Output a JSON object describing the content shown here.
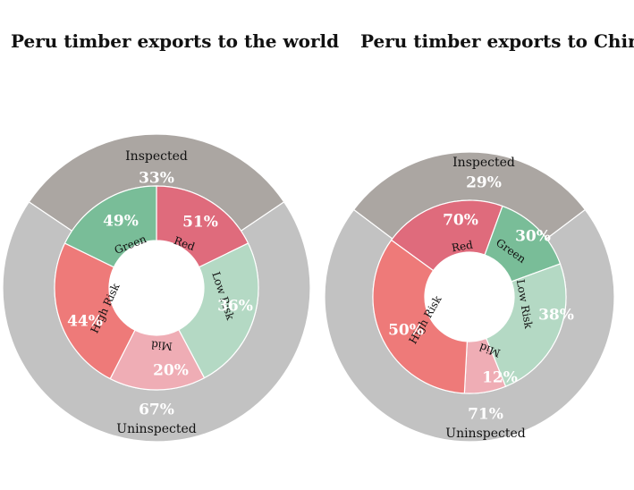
{
  "chart_data": [
    {
      "type": "donut",
      "title": "Peru timber exports to the world",
      "outer": [
        {
          "label": "Inspected",
          "value": 33,
          "display": "33%"
        },
        {
          "label": "Uninspected",
          "value": 67,
          "display": "67%"
        }
      ],
      "inner": [
        {
          "label": "Red",
          "value": 51,
          "display": "51%"
        },
        {
          "label": "Green",
          "value": 49,
          "display": "49%"
        },
        {
          "label": "Low Risk",
          "value": 36,
          "display": "36%"
        },
        {
          "label": "Mid",
          "value": 20,
          "display": "20%"
        },
        {
          "label": "High Risk",
          "value": 44,
          "display": "44%"
        }
      ]
    },
    {
      "type": "donut",
      "title": "Peru timber exports to China",
      "outer": [
        {
          "label": "Inspected",
          "value": 29,
          "display": "29%"
        },
        {
          "label": "Uninspected",
          "value": 71,
          "display": "71%"
        }
      ],
      "inner": [
        {
          "label": "Green",
          "value": 30,
          "display": "30%"
        },
        {
          "label": "Red",
          "value": 70,
          "display": "70%"
        },
        {
          "label": "Low Risk",
          "value": 38,
          "display": "38%"
        },
        {
          "label": "Mid",
          "value": 12,
          "display": "12%"
        },
        {
          "label": "High Risk",
          "value": 50,
          "display": "50%"
        }
      ]
    }
  ],
  "colors": {
    "inspected": "#aba6a2",
    "uninspected": "#c2c2c2",
    "red": "#df6b7c",
    "green": "#79bd98",
    "low_risk": "#b4d9c4",
    "mid": "#efadb5",
    "high_risk": "#ee7a79",
    "center": "#ffffff",
    "label_light": "#ffffff",
    "label_dark": "#111111"
  }
}
